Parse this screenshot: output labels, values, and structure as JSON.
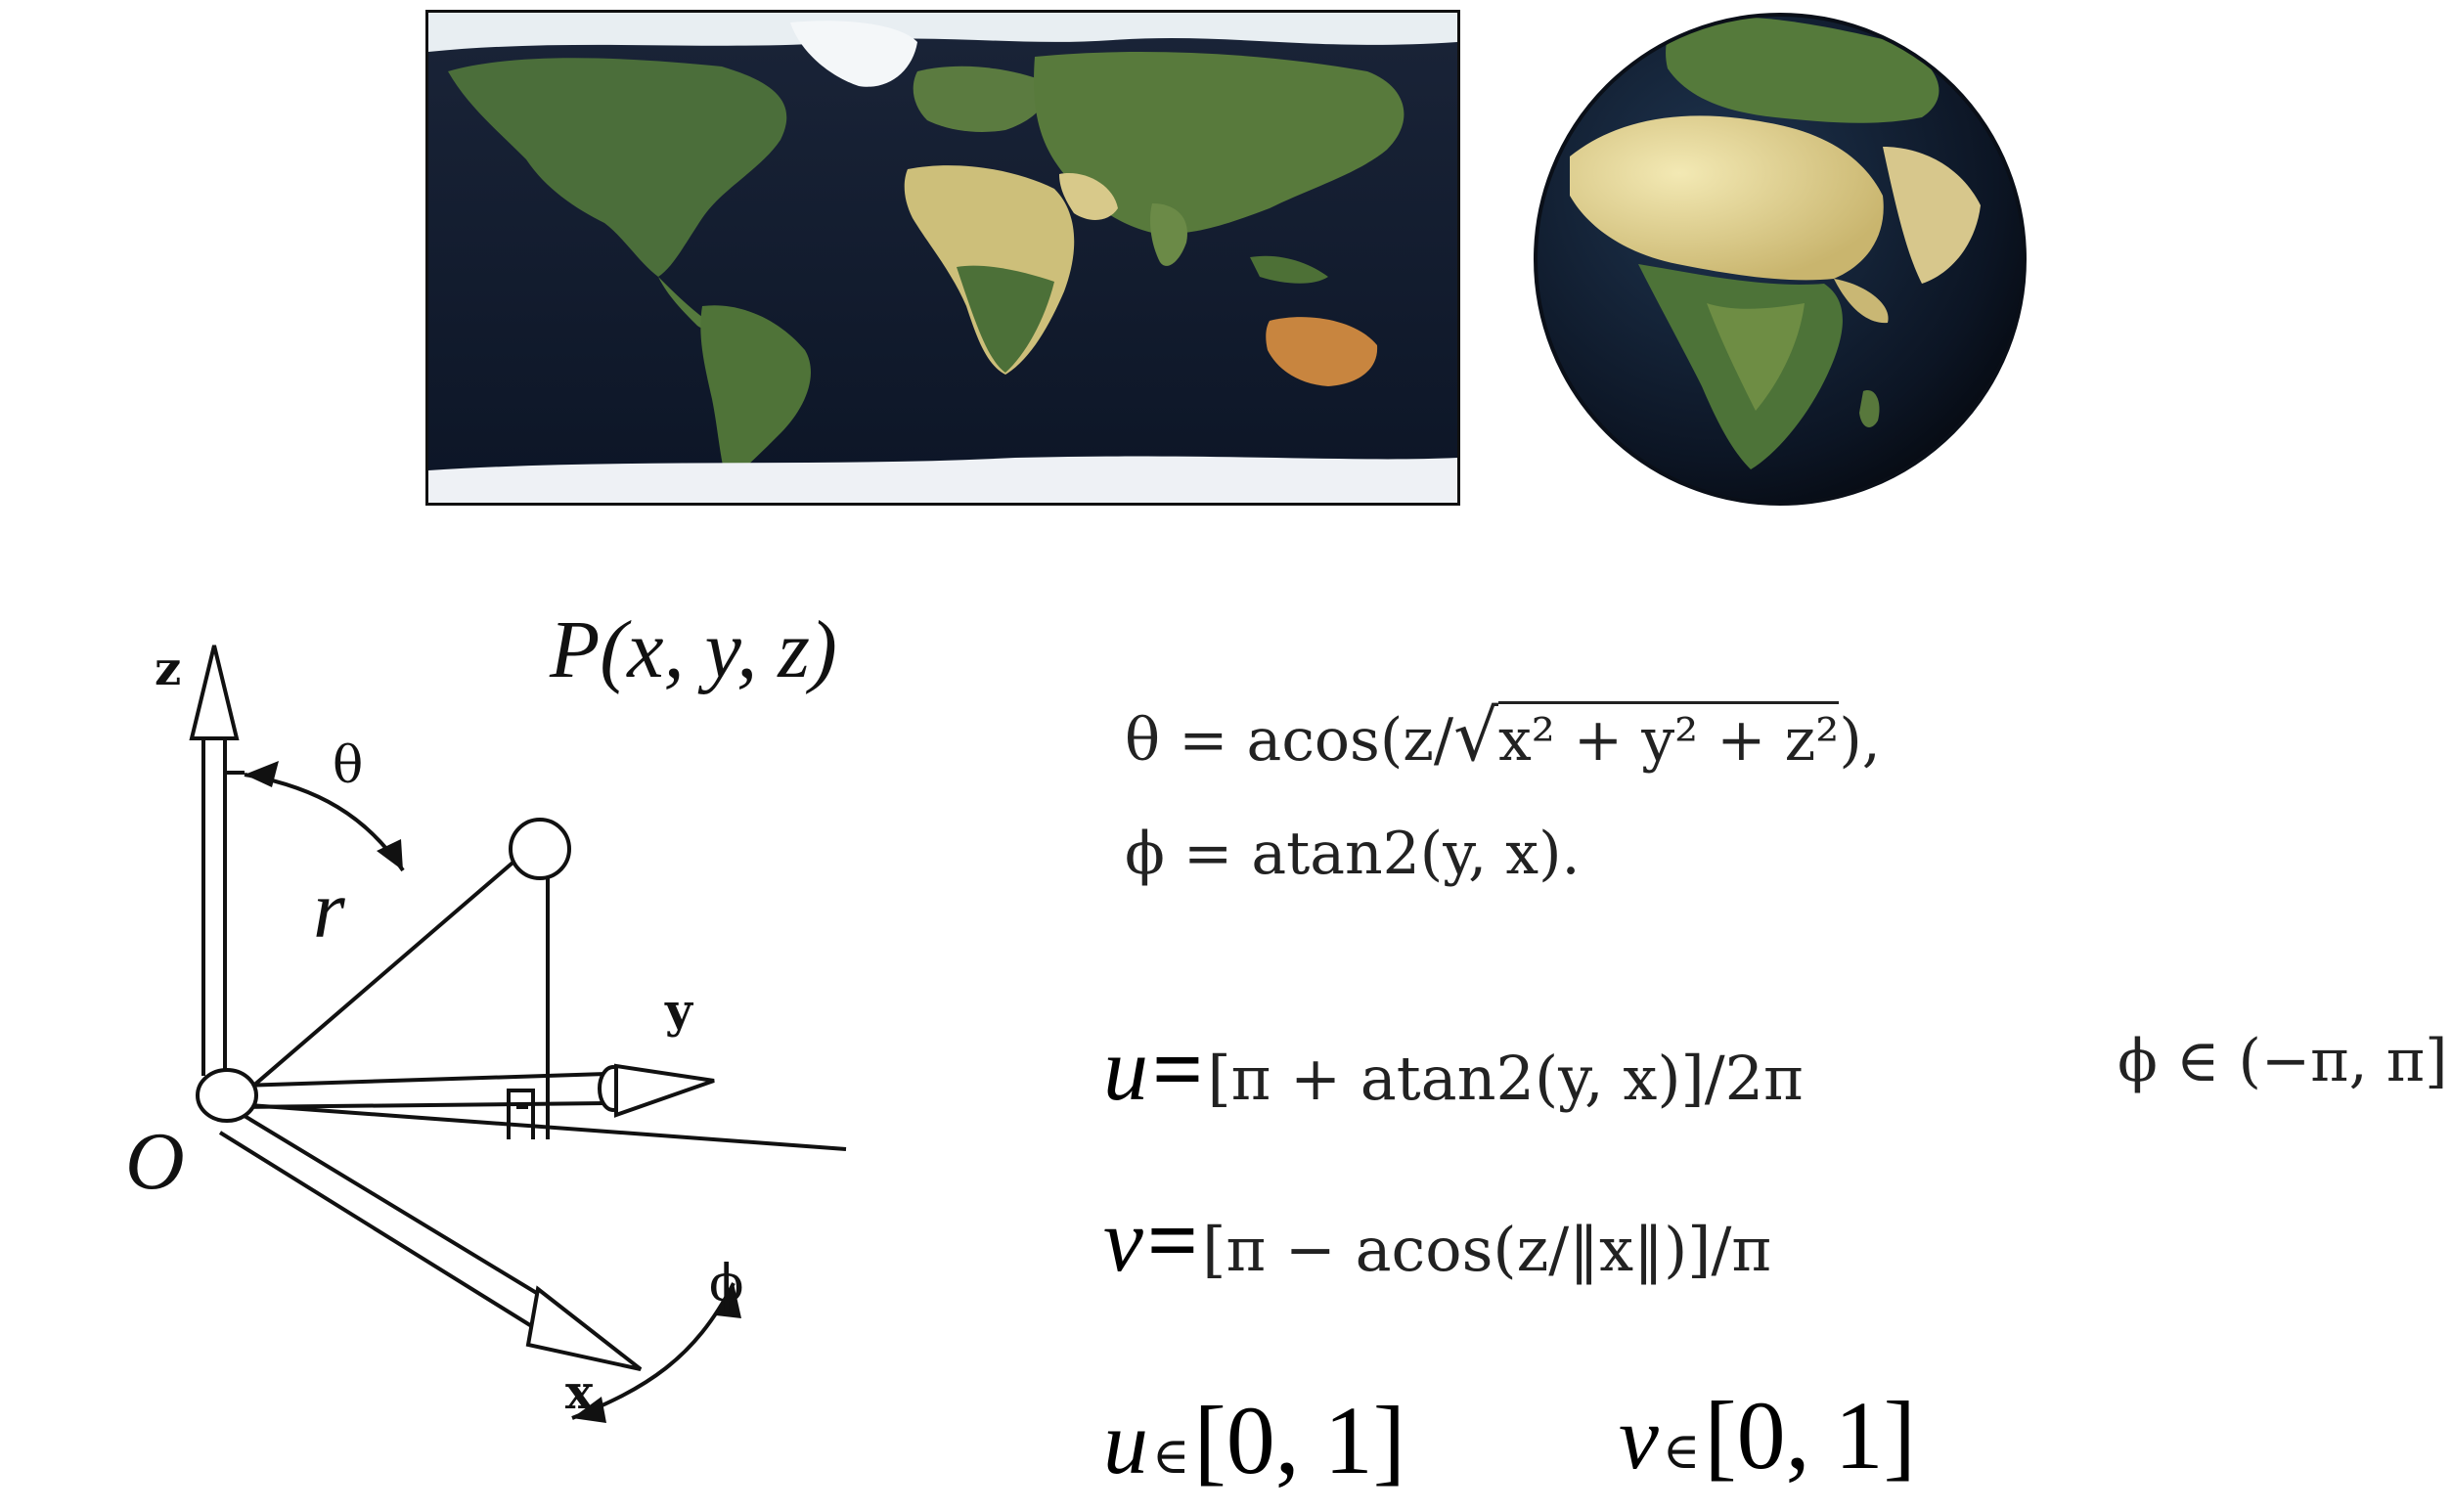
{
  "images": {
    "equirectangular_map": {
      "icon": "world-map-image"
    },
    "globe": {
      "icon": "globe-image"
    }
  },
  "diagram": {
    "axis_z": "z",
    "axis_y": "y",
    "axis_x": "x",
    "angle_theta": "θ",
    "angle_phi": "ϕ",
    "radius": "r",
    "origin": "O",
    "point": "P(x, y, z)"
  },
  "equations": {
    "theta_lhs": "θ = acos(z/",
    "theta_sqrt": "x² + y² + z²",
    "theta_rhs": "),",
    "phi": "ϕ = atan2(y, x).",
    "u_var": "u",
    "u_eq": "=",
    "u_rhs": "[π + atan2(y, x)]/2π",
    "phi_range": "ϕ ∈ (−π, π]",
    "v_var": "v",
    "v_eq": "=",
    "v_rhs": "[π − acos(z/‖x‖)]/π",
    "u_range_var": "u",
    "u_range_in": "∈",
    "u_range_val": "[0, 1]",
    "v_range_var": "v",
    "v_range_in": "∈",
    "v_range_val": "[0, 1]"
  }
}
